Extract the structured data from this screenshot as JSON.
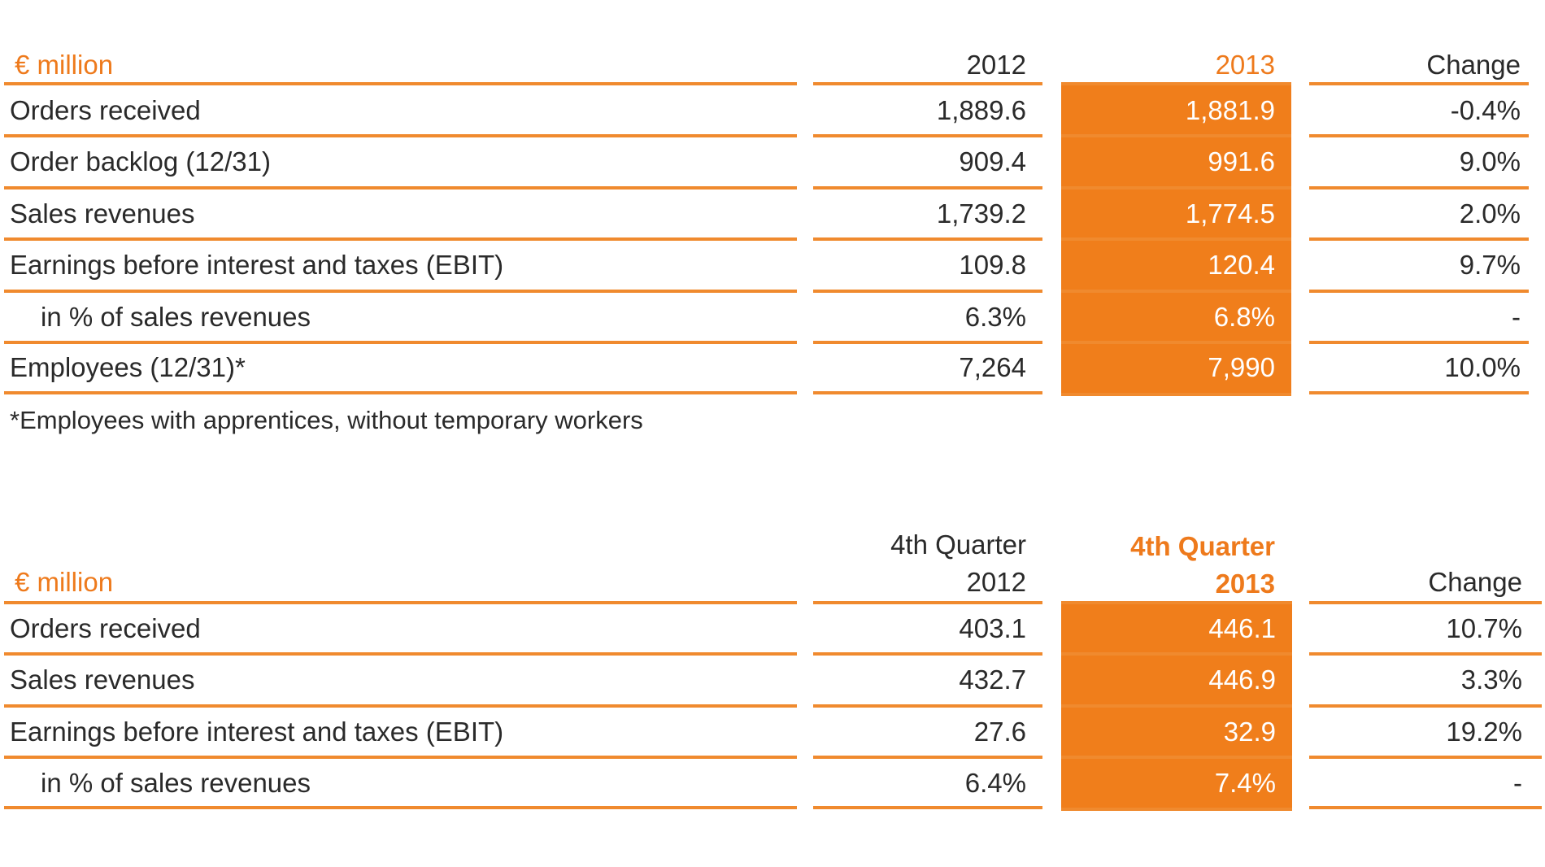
{
  "colors": {
    "accent": "#ee7a1c",
    "highlight_fill": "#f07e1b",
    "rule": "#f08a2e",
    "text": "#2a2a2a"
  },
  "annual": {
    "unit_label": "€ million",
    "col_2012": "2012",
    "col_2013": "2013",
    "col_change": "Change",
    "rows": [
      {
        "label": "Orders received",
        "v2012": "1,889.6",
        "v2013": "1,881.9",
        "change": "-0.4%"
      },
      {
        "label": "Order backlog (12/31)",
        "v2012": "909.4",
        "v2013": "991.6",
        "change": "9.0%"
      },
      {
        "label": "Sales revenues",
        "v2012": "1,739.2",
        "v2013": "1,774.5",
        "change": "2.0%"
      },
      {
        "label": "Earnings before interest and taxes (EBIT)",
        "v2012": "109.8",
        "v2013": "120.4",
        "change": "9.7%"
      },
      {
        "label": "in % of sales revenues",
        "v2012": "6.3%",
        "v2013": "6.8%",
        "change": "-"
      },
      {
        "label": "Employees (12/31)*",
        "v2012": "7,264",
        "v2013": "7,990",
        "change": "10.0%"
      }
    ],
    "footnote": "*Employees with apprentices, without temporary workers"
  },
  "quarter": {
    "unit_label": "€ million",
    "col_2012_line1": "4th Quarter",
    "col_2012_line2": "2012",
    "col_2013_line1": "4th Quarter",
    "col_2013_line2": "2013",
    "col_change": "Change",
    "rows": [
      {
        "label": "Orders received",
        "v2012": "403.1",
        "v2013": "446.1",
        "change": "10.7%"
      },
      {
        "label": "Sales revenues",
        "v2012": "432.7",
        "v2013": "446.9",
        "change": "3.3%"
      },
      {
        "label": "Earnings before interest and taxes (EBIT)",
        "v2012": "27.6",
        "v2013": "32.9",
        "change": "19.2%"
      },
      {
        "label": "in % of sales revenues",
        "v2012": "6.4%",
        "v2013": "7.4%",
        "change": "-"
      }
    ]
  }
}
